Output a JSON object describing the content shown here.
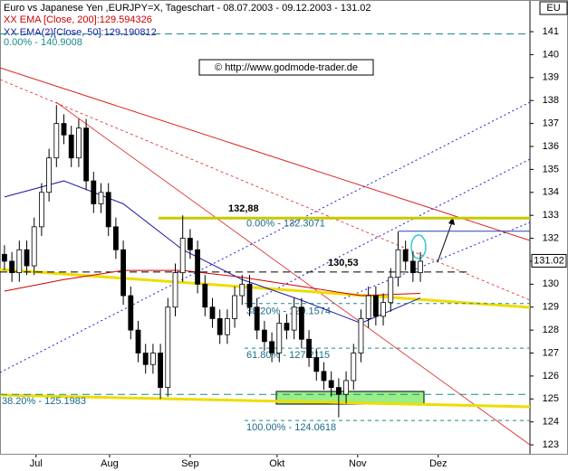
{
  "chart_data": {
    "type": "candlestick",
    "title": "Euro vs Japanese Yen ,EURJPY=X, Tageschart - 08.07.2003 - 09.12.2003 - 131.02",
    "watermark": "© http://www.godmode-trader.de",
    "symbol_box": "EU",
    "x": [
      0,
      2,
      4,
      6,
      8,
      10,
      12,
      14,
      16,
      18,
      20,
      22,
      24,
      26,
      28,
      30,
      32,
      34,
      36,
      38,
      40,
      42,
      44,
      46,
      48,
      50,
      52,
      54,
      56,
      58,
      60,
      62,
      64,
      66,
      68,
      70,
      72,
      74,
      76,
      78,
      80,
      82,
      84,
      86,
      88,
      90,
      92,
      94,
      96,
      98,
      100,
      102,
      104,
      106,
      108,
      110,
      112
    ],
    "open": [
      131.3,
      131.0,
      130.5,
      131.5,
      130.8,
      132.5,
      134.0,
      135.5,
      137.0,
      136.5,
      135.5,
      136.8,
      134.5,
      133.5,
      134.0,
      132.5,
      131.5,
      129.5,
      128.0,
      127.0,
      126.5,
      127.0,
      125.5,
      129.0,
      130.5,
      132.0,
      131.5,
      130.0,
      129.0,
      128.5,
      127.8,
      128.5,
      129.5,
      130.0,
      129.0,
      128.0,
      127.5,
      127.0,
      128.3,
      128.0,
      129.0,
      127.6,
      126.8,
      126.2,
      125.8,
      125.5,
      125.2,
      125.8,
      127.0,
      128.5,
      129.5,
      128.6,
      129.2,
      130.3,
      131.5,
      131.0,
      130.5
    ],
    "high": [
      131.7,
      131.4,
      131.9,
      131.9,
      132.9,
      134.4,
      135.9,
      137.8,
      137.4,
      136.9,
      137.2,
      137.2,
      134.9,
      134.4,
      134.4,
      132.9,
      131.9,
      129.9,
      128.4,
      127.4,
      127.4,
      127.4,
      129.4,
      130.9,
      133.0,
      132.4,
      131.9,
      130.4,
      129.4,
      128.9,
      128.9,
      129.9,
      130.4,
      130.4,
      129.4,
      128.4,
      127.9,
      128.7,
      128.7,
      129.4,
      129.4,
      128.0,
      127.2,
      126.6,
      126.2,
      125.9,
      126.2,
      127.4,
      128.9,
      129.9,
      129.9,
      129.6,
      130.7,
      132.3,
      131.9,
      131.4,
      131.4
    ],
    "low": [
      130.6,
      130.1,
      130.1,
      130.4,
      130.4,
      132.1,
      133.6,
      135.1,
      136.1,
      135.1,
      135.1,
      134.1,
      133.1,
      133.1,
      132.1,
      131.1,
      129.1,
      127.6,
      126.6,
      126.1,
      126.1,
      125.0,
      125.1,
      128.6,
      130.1,
      131.1,
      129.6,
      128.6,
      128.1,
      127.4,
      127.4,
      128.1,
      129.1,
      128.6,
      127.6,
      127.1,
      126.6,
      126.6,
      127.6,
      127.6,
      127.2,
      126.4,
      125.8,
      125.4,
      125.1,
      124.2,
      124.8,
      125.4,
      126.6,
      128.1,
      128.2,
      128.2,
      128.8,
      129.9,
      130.6,
      130.1,
      130.1
    ],
    "close": [
      131.0,
      130.5,
      131.5,
      130.8,
      132.5,
      134.0,
      135.5,
      137.0,
      136.5,
      135.5,
      136.8,
      134.5,
      133.5,
      134.0,
      132.5,
      131.5,
      129.5,
      128.0,
      127.0,
      126.5,
      127.0,
      125.5,
      129.0,
      130.5,
      132.0,
      131.5,
      130.0,
      129.0,
      128.5,
      127.8,
      128.5,
      129.5,
      130.0,
      129.0,
      128.0,
      127.5,
      127.0,
      128.3,
      128.0,
      129.0,
      127.6,
      126.8,
      126.2,
      125.8,
      125.5,
      125.2,
      125.8,
      127.0,
      128.5,
      129.5,
      128.6,
      129.2,
      130.3,
      131.5,
      131.0,
      130.5,
      131.0
    ],
    "series": [
      {
        "name": "XX EMA [Close, 200]:129.594326",
        "color": "#cc0000",
        "x": [
          0,
          16,
          32,
          48,
          64,
          80,
          96,
          112
        ],
        "values": [
          129.7,
          130.2,
          130.6,
          130.6,
          130.3,
          129.9,
          129.5,
          129.6
        ]
      },
      {
        "name": "XX EMA(2)[Close, 50]:129.190812",
        "color": "#1a1aa6",
        "x": [
          0,
          16,
          32,
          48,
          64,
          80,
          96,
          112
        ],
        "values": [
          133.8,
          134.5,
          133.5,
          131.5,
          130.2,
          129.3,
          128.3,
          129.4
        ]
      }
    ],
    "reference_line": {
      "label": "0.00% - 140.9008",
      "value": 140.9008
    },
    "fib_levels": [
      {
        "label": "0.00% - 132.3071",
        "value": 132.3071
      },
      {
        "label": "38.20% - 129.1574",
        "value": 129.1574
      },
      {
        "label": "61.80% - 127.2115",
        "value": 127.2115
      },
      {
        "label": "100.00% - 124.0618",
        "value": 124.0618
      },
      {
        "label": "38.20% - 125.1983",
        "value": 125.1983
      }
    ],
    "price_levels": [
      {
        "label": "132,88",
        "value": 132.88,
        "color": "#c8c800"
      },
      {
        "label": "130,53",
        "value": 130.53,
        "color": "#000000"
      }
    ],
    "last_price": 131.02,
    "xlim": [
      -1.2,
      141.5
    ],
    "ylim": [
      122.57,
      142.38
    ],
    "yticks": [
      123,
      124,
      125,
      126,
      127,
      128,
      129,
      130,
      131,
      132,
      133,
      134,
      135,
      136,
      137,
      138,
      139,
      140,
      141
    ],
    "xticks": [
      {
        "value": 8.5,
        "label": "Jul"
      },
      {
        "value": 28.3,
        "label": "Aug"
      },
      {
        "value": 50,
        "label": "Sep"
      },
      {
        "value": 73.4,
        "label": "Okt"
      },
      {
        "value": 95.1,
        "label": "Nov"
      },
      {
        "value": 116.8,
        "label": "Dez"
      }
    ]
  }
}
